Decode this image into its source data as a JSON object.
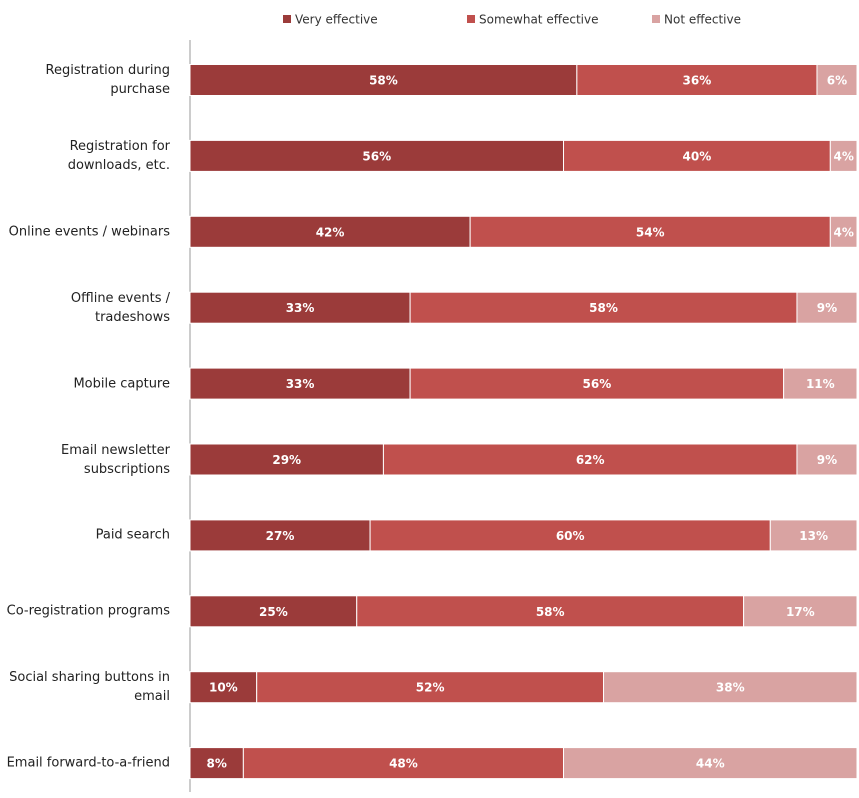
{
  "chart_data": {
    "type": "stacked-bar-horizontal",
    "categories": [
      "Registration during purchase",
      "Registration for downloads, etc.",
      "Online events / webinars",
      "Offline events / tradeshows",
      "Mobile capture",
      "Email newsletter subscriptions",
      "Paid search",
      "Co-registration programs",
      "Social sharing buttons in email",
      "Email forward-to-a-friend"
    ],
    "series": [
      {
        "name": "Very effective",
        "color": "#9b3b3a",
        "values": [
          58,
          56,
          42,
          33,
          33,
          29,
          27,
          25,
          10,
          8
        ],
        "value_labels": [
          "58%",
          "56%",
          "42%",
          "33%",
          "33%",
          "29%",
          "27%",
          "25%",
          "10%",
          "8%"
        ]
      },
      {
        "name": "Somewhat effective",
        "color": "#c0504d",
        "values": [
          36,
          40,
          54,
          58,
          56,
          62,
          60,
          58,
          52,
          48
        ],
        "value_labels": [
          "36%",
          "40%",
          "54%",
          "58%",
          "56%",
          "62%",
          "60%",
          "58%",
          "52%",
          "48%"
        ]
      },
      {
        "name": "Not effective",
        "color": "#d9a3a2",
        "values": [
          6,
          4,
          4,
          9,
          11,
          9,
          13,
          17,
          38,
          44
        ],
        "value_labels": [
          "6%",
          "4%",
          "4%",
          "9%",
          "11%",
          "9%",
          "13%",
          "17%",
          "38%",
          "44%"
        ]
      }
    ],
    "xlim": [
      0,
      100
    ]
  }
}
